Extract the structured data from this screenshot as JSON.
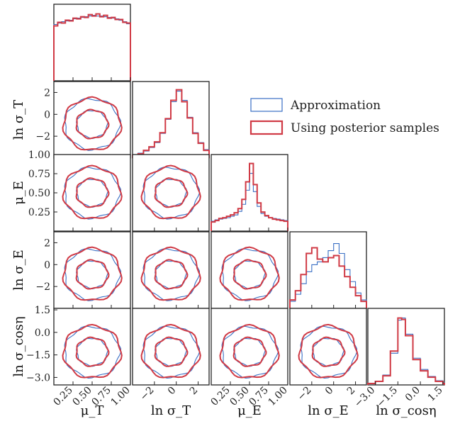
{
  "colors": {
    "approx": "#3a6fc4",
    "posterior": "#d03a45",
    "frame": "#222222"
  },
  "legend": {
    "approx_label": "Approximation",
    "posterior_label": "Using posterior samples"
  },
  "axis_labels": [
    "μ_T",
    "ln σ_T",
    "μ_E",
    "ln σ_E",
    "ln σ_cosη"
  ],
  "chart_data": {
    "type": "corner",
    "params": [
      {
        "label": "μ_T",
        "range": [
          0.0,
          1.0
        ],
        "ticks": [
          0.25,
          0.5,
          0.75,
          1.0
        ],
        "tick_labels": [
          "0.25",
          "0.50",
          "0.75",
          "1.00"
        ]
      },
      {
        "label": "ln σ_T",
        "range": [
          -4,
          3
        ],
        "ticks": [
          -2,
          0,
          2
        ],
        "tick_labels": [
          "−2",
          "0",
          "2"
        ]
      },
      {
        "label": "μ_E",
        "range": [
          0.0,
          1.0
        ],
        "ticks": [
          0.25,
          0.5,
          0.75,
          1.0
        ],
        "tick_labels": [
          "0.25",
          "0.50",
          "0.75",
          "1.00"
        ]
      },
      {
        "label": "ln σ_E",
        "range": [
          -4,
          3
        ],
        "ticks": [
          -2,
          0,
          2
        ],
        "tick_labels": [
          "−2",
          "0",
          "2"
        ]
      },
      {
        "label": "ln σ_cosη",
        "range": [
          -3.5,
          1.6
        ],
        "ticks": [
          -3.0,
          -1.5,
          0.0,
          1.5
        ],
        "tick_labels": [
          "−3.0",
          "−1.5",
          "0.0",
          "1.5"
        ]
      }
    ],
    "y_tick_labels": {
      "row1": [
        "2",
        "0",
        "−2"
      ],
      "row2": [
        "1.00",
        "0.75",
        "0.50",
        "0.25"
      ],
      "row3": [
        "2",
        "0",
        "−2"
      ],
      "row4": [
        "1.5",
        "0.0",
        "−1.5",
        "−3.0"
      ]
    },
    "series": [
      {
        "name": "Approximation"
      },
      {
        "name": "Using posterior samples"
      }
    ],
    "marginals": {
      "mu_T": {
        "x": [
          0.0,
          0.05,
          0.1,
          0.15,
          0.2,
          0.25,
          0.3,
          0.35,
          0.4,
          0.45,
          0.5,
          0.55,
          0.6,
          0.65,
          0.7,
          0.75,
          0.8,
          0.85,
          0.9,
          0.95,
          1.0
        ],
        "approx": [
          0.8,
          0.82,
          0.84,
          0.85,
          0.86,
          0.88,
          0.89,
          0.9,
          0.91,
          0.92,
          0.93,
          0.92,
          0.92,
          0.91,
          0.9,
          0.89,
          0.88,
          0.86,
          0.84,
          0.81,
          0.8
        ],
        "posterior": [
          0.78,
          0.83,
          0.82,
          0.86,
          0.85,
          0.89,
          0.88,
          0.91,
          0.9,
          0.94,
          0.92,
          0.95,
          0.91,
          0.93,
          0.89,
          0.9,
          0.87,
          0.87,
          0.83,
          0.82,
          0.79
        ]
      },
      "ln_sigma_T": {
        "x": [
          -4.0,
          -3.5,
          -3.0,
          -2.5,
          -2.0,
          -1.5,
          -1.0,
          -0.5,
          0.0,
          0.5,
          1.0,
          1.5,
          2.0,
          2.5,
          3.0
        ],
        "approx": [
          0.05,
          0.07,
          0.1,
          0.15,
          0.22,
          0.35,
          0.55,
          0.8,
          0.95,
          0.82,
          0.58,
          0.36,
          0.22,
          0.12,
          0.07
        ],
        "posterior": [
          0.04,
          0.06,
          0.11,
          0.16,
          0.23,
          0.36,
          0.56,
          0.82,
          0.97,
          0.8,
          0.57,
          0.35,
          0.21,
          0.11,
          0.06
        ]
      },
      "mu_E": {
        "x": [
          0.0,
          0.05,
          0.1,
          0.15,
          0.2,
          0.25,
          0.3,
          0.35,
          0.4,
          0.45,
          0.5,
          0.55,
          0.6,
          0.65,
          0.7,
          0.75,
          0.8,
          0.85,
          0.9,
          0.95,
          1.0
        ],
        "approx": [
          0.14,
          0.16,
          0.17,
          0.18,
          0.19,
          0.21,
          0.23,
          0.28,
          0.38,
          0.58,
          0.82,
          0.56,
          0.35,
          0.25,
          0.21,
          0.19,
          0.18,
          0.17,
          0.16,
          0.15,
          0.14
        ],
        "posterior": [
          0.13,
          0.15,
          0.18,
          0.19,
          0.21,
          0.23,
          0.26,
          0.32,
          0.45,
          0.7,
          0.96,
          0.66,
          0.4,
          0.27,
          0.22,
          0.19,
          0.17,
          0.16,
          0.15,
          0.14,
          0.13
        ]
      },
      "ln_sigma_E": {
        "x": [
          -4.0,
          -3.5,
          -3.0,
          -2.5,
          -2.0,
          -1.5,
          -1.0,
          -0.5,
          0.0,
          0.5,
          1.0,
          1.5,
          2.0,
          2.5,
          3.0
        ],
        "approx": [
          0.1,
          0.2,
          0.35,
          0.52,
          0.62,
          0.66,
          0.72,
          0.82,
          0.92,
          0.78,
          0.55,
          0.38,
          0.22,
          0.12,
          0.06
        ],
        "posterior": [
          0.12,
          0.25,
          0.48,
          0.78,
          0.86,
          0.7,
          0.66,
          0.72,
          0.75,
          0.6,
          0.45,
          0.3,
          0.18,
          0.1,
          0.05
        ]
      },
      "ln_sigma_cos_eta": {
        "x": [
          -3.5,
          -3.0,
          -2.5,
          -2.0,
          -1.5,
          -1.25,
          -1.0,
          -0.5,
          0.0,
          0.5,
          1.0,
          1.5
        ],
        "approx": [
          0.02,
          0.05,
          0.14,
          0.45,
          0.92,
          0.95,
          0.72,
          0.38,
          0.22,
          0.12,
          0.06,
          0.03
        ],
        "posterior": [
          0.02,
          0.05,
          0.13,
          0.48,
          0.95,
          0.93,
          0.7,
          0.36,
          0.2,
          0.11,
          0.05,
          0.02
        ]
      }
    }
  }
}
